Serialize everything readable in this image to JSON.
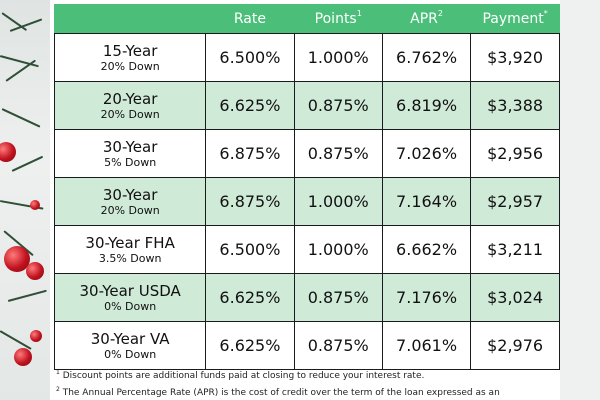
{
  "table": {
    "headers": [
      {
        "label": "",
        "sup": ""
      },
      {
        "label": "Rate",
        "sup": ""
      },
      {
        "label": "Points",
        "sup": "1"
      },
      {
        "label": "APR",
        "sup": "2"
      },
      {
        "label": "Payment",
        "sup": "*"
      }
    ],
    "rows": [
      {
        "term": "15-Year",
        "down": "20% Down",
        "rate": "6.500%",
        "points": "1.000%",
        "apr": "6.762%",
        "payment": "$3,920"
      },
      {
        "term": "20-Year",
        "down": "20% Down",
        "rate": "6.625%",
        "points": "0.875%",
        "apr": "6.819%",
        "payment": "$3,388"
      },
      {
        "term": "30-Year",
        "down": "5% Down",
        "rate": "6.875%",
        "points": "0.875%",
        "apr": "7.026%",
        "payment": "$2,956"
      },
      {
        "term": "30-Year",
        "down": "20% Down",
        "rate": "6.875%",
        "points": "1.000%",
        "apr": "7.164%",
        "payment": "$2,957"
      },
      {
        "term": "30-Year FHA",
        "down": "3.5% Down",
        "rate": "6.500%",
        "points": "1.000%",
        "apr": "6.662%",
        "payment": "$3,211"
      },
      {
        "term": "30-Year USDA",
        "down": "0% Down",
        "rate": "6.625%",
        "points": "0.875%",
        "apr": "7.176%",
        "payment": "$3,024"
      },
      {
        "term": "30-Year VA",
        "down": "0% Down",
        "rate": "6.625%",
        "points": "0.875%",
        "apr": "7.061%",
        "payment": "$2,976"
      }
    ]
  },
  "footnotes": [
    {
      "sup": "1",
      "text": "Discount points are additional funds paid at closing to reduce your interest rate."
    },
    {
      "sup": "2",
      "text": "The Annual Percentage Rate (APR) is the cost of credit over the term of the loan expressed as an"
    }
  ],
  "colors": {
    "header_green": "#4bbf7a",
    "alt_row_green": "#cfead7"
  }
}
